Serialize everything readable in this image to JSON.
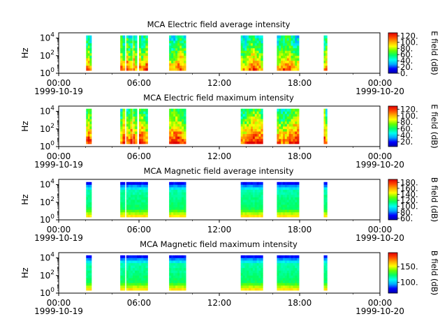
{
  "chart_data": [
    {
      "type": "heatmap",
      "title": "MCA  Electric field average intensity",
      "ylabel": "Hz",
      "y_scale": "log",
      "ylim": [
        1,
        40000
      ],
      "y_ticks": [
        {
          "v": 1,
          "e": "0"
        },
        {
          "v": 100,
          "e": "2"
        },
        {
          "v": 10000,
          "e": "4"
        }
      ],
      "xlim": [
        "1999-10-19T00:00",
        "1999-10-20T00:00"
      ],
      "x_ticks": [
        {
          "hour": 0,
          "time": "00:00",
          "date": "1999-10-19"
        },
        {
          "hour": 6,
          "time": "06:00",
          "date": ""
        },
        {
          "hour": 12,
          "time": "12:00",
          "date": ""
        },
        {
          "hour": 18,
          "time": "18:00",
          "date": ""
        },
        {
          "hour": 24,
          "time": "00:00",
          "date": "1999-10-20"
        }
      ],
      "colorbar": {
        "label": "E field (dB)",
        "range": [
          0,
          130
        ],
        "ticks": [
          {
            "v": 0,
            "t": "0."
          },
          {
            "v": 20,
            "t": "20."
          },
          {
            "v": 40,
            "t": "40."
          },
          {
            "v": 60,
            "t": "60."
          },
          {
            "v": 80,
            "t": "80."
          },
          {
            "v": 100,
            "t": "100."
          },
          {
            "v": 120,
            "t": "120."
          }
        ]
      },
      "data_intervals_hours": [
        [
          2.05,
          2.45
        ],
        [
          4.6,
          4.95
        ],
        [
          5.05,
          5.5
        ],
        [
          5.55,
          5.85
        ],
        [
          6.0,
          6.65
        ],
        [
          8.25,
          9.5
        ],
        [
          13.6,
          15.25
        ],
        [
          16.3,
          17.95
        ],
        [
          19.8,
          20.05
        ]
      ],
      "intensity_profile": "electric_avg"
    },
    {
      "type": "heatmap",
      "title": "MCA  Electric field maximum intensity",
      "ylabel": "Hz",
      "y_scale": "log",
      "ylim": [
        1,
        40000
      ],
      "y_ticks": [
        {
          "v": 1,
          "e": "0"
        },
        {
          "v": 100,
          "e": "2"
        },
        {
          "v": 10000,
          "e": "4"
        }
      ],
      "xlim": [
        "1999-10-19T00:00",
        "1999-10-20T00:00"
      ],
      "x_ticks": [
        {
          "hour": 0,
          "time": "00:00",
          "date": "1999-10-19"
        },
        {
          "hour": 6,
          "time": "06:00",
          "date": ""
        },
        {
          "hour": 12,
          "time": "12:00",
          "date": ""
        },
        {
          "hour": 18,
          "time": "18:00",
          "date": ""
        },
        {
          "hour": 24,
          "time": "00:00",
          "date": "1999-10-20"
        }
      ],
      "colorbar": {
        "label": "E field (dB)",
        "range": [
          5,
          130
        ],
        "ticks": [
          {
            "v": 20,
            "t": "20."
          },
          {
            "v": 40,
            "t": "40."
          },
          {
            "v": 60,
            "t": "60."
          },
          {
            "v": 80,
            "t": "80."
          },
          {
            "v": 100,
            "t": "100."
          },
          {
            "v": 120,
            "t": "120."
          }
        ]
      },
      "data_intervals_hours": [
        [
          2.05,
          2.45
        ],
        [
          4.6,
          4.95
        ],
        [
          5.05,
          5.5
        ],
        [
          5.55,
          5.85
        ],
        [
          6.0,
          6.65
        ],
        [
          8.25,
          9.5
        ],
        [
          13.6,
          15.25
        ],
        [
          16.3,
          17.95
        ],
        [
          19.8,
          20.05
        ]
      ],
      "intensity_profile": "electric_max"
    },
    {
      "type": "heatmap",
      "title": "MCA  Magnetic field average intensity",
      "ylabel": "Hz",
      "y_scale": "log",
      "ylim": [
        1,
        40000
      ],
      "y_ticks": [
        {
          "v": 1,
          "e": "0"
        },
        {
          "v": 100,
          "e": "2"
        },
        {
          "v": 10000,
          "e": "4"
        }
      ],
      "xlim": [
        "1999-10-19T00:00",
        "1999-10-20T00:00"
      ],
      "x_ticks": [
        {
          "hour": 0,
          "time": "00:00",
          "date": "1999-10-19"
        },
        {
          "hour": 6,
          "time": "06:00",
          "date": ""
        },
        {
          "hour": 12,
          "time": "12:00",
          "date": ""
        },
        {
          "hour": 18,
          "time": "18:00",
          "date": ""
        },
        {
          "hour": 24,
          "time": "00:00",
          "date": "1999-10-20"
        }
      ],
      "colorbar": {
        "label": "B field (dB)",
        "range": [
          55,
          190
        ],
        "ticks": [
          {
            "v": 60,
            "t": "60."
          },
          {
            "v": 80,
            "t": "80."
          },
          {
            "v": 100,
            "t": "100."
          },
          {
            "v": 120,
            "t": "120."
          },
          {
            "v": 140,
            "t": "140."
          },
          {
            "v": 160,
            "t": "160."
          },
          {
            "v": 180,
            "t": "180."
          }
        ]
      },
      "data_intervals_hours": [
        [
          2.05,
          2.45
        ],
        [
          4.6,
          4.95
        ],
        [
          5.05,
          6.65
        ],
        [
          8.25,
          9.5
        ],
        [
          13.6,
          15.25
        ],
        [
          16.3,
          17.95
        ],
        [
          19.8,
          20.05
        ]
      ],
      "intensity_profile": "magnetic"
    },
    {
      "type": "heatmap",
      "title": "MCA  Magnetic field maximum intensity",
      "ylabel": "Hz",
      "y_scale": "log",
      "ylim": [
        1,
        40000
      ],
      "y_ticks": [
        {
          "v": 1,
          "e": "0"
        },
        {
          "v": 100,
          "e": "2"
        },
        {
          "v": 10000,
          "e": "4"
        }
      ],
      "xlim": [
        "1999-10-19T00:00",
        "1999-10-20T00:00"
      ],
      "x_ticks": [
        {
          "hour": 0,
          "time": "00:00",
          "date": "1999-10-19"
        },
        {
          "hour": 6,
          "time": "06:00",
          "date": ""
        },
        {
          "hour": 12,
          "time": "12:00",
          "date": ""
        },
        {
          "hour": 18,
          "time": "18:00",
          "date": ""
        },
        {
          "hour": 24,
          "time": "00:00",
          "date": "1999-10-20"
        }
      ],
      "colorbar": {
        "label": "B field (dB)",
        "range": [
          65,
          195
        ],
        "ticks": [
          {
            "v": 100,
            "t": "100."
          },
          {
            "v": 150,
            "t": "150."
          }
        ]
      },
      "data_intervals_hours": [
        [
          2.05,
          2.45
        ],
        [
          4.6,
          4.95
        ],
        [
          5.05,
          6.65
        ],
        [
          8.25,
          9.5
        ],
        [
          13.6,
          15.25
        ],
        [
          16.3,
          17.95
        ],
        [
          19.8,
          20.05
        ]
      ],
      "intensity_profile": "magnetic"
    }
  ],
  "colormap": [
    "#0000aa",
    "#0000ff",
    "#00aaff",
    "#00ffee",
    "#00ff66",
    "#66ff00",
    "#ffff00",
    "#ffaa00",
    "#ff4400",
    "#dd0000"
  ]
}
